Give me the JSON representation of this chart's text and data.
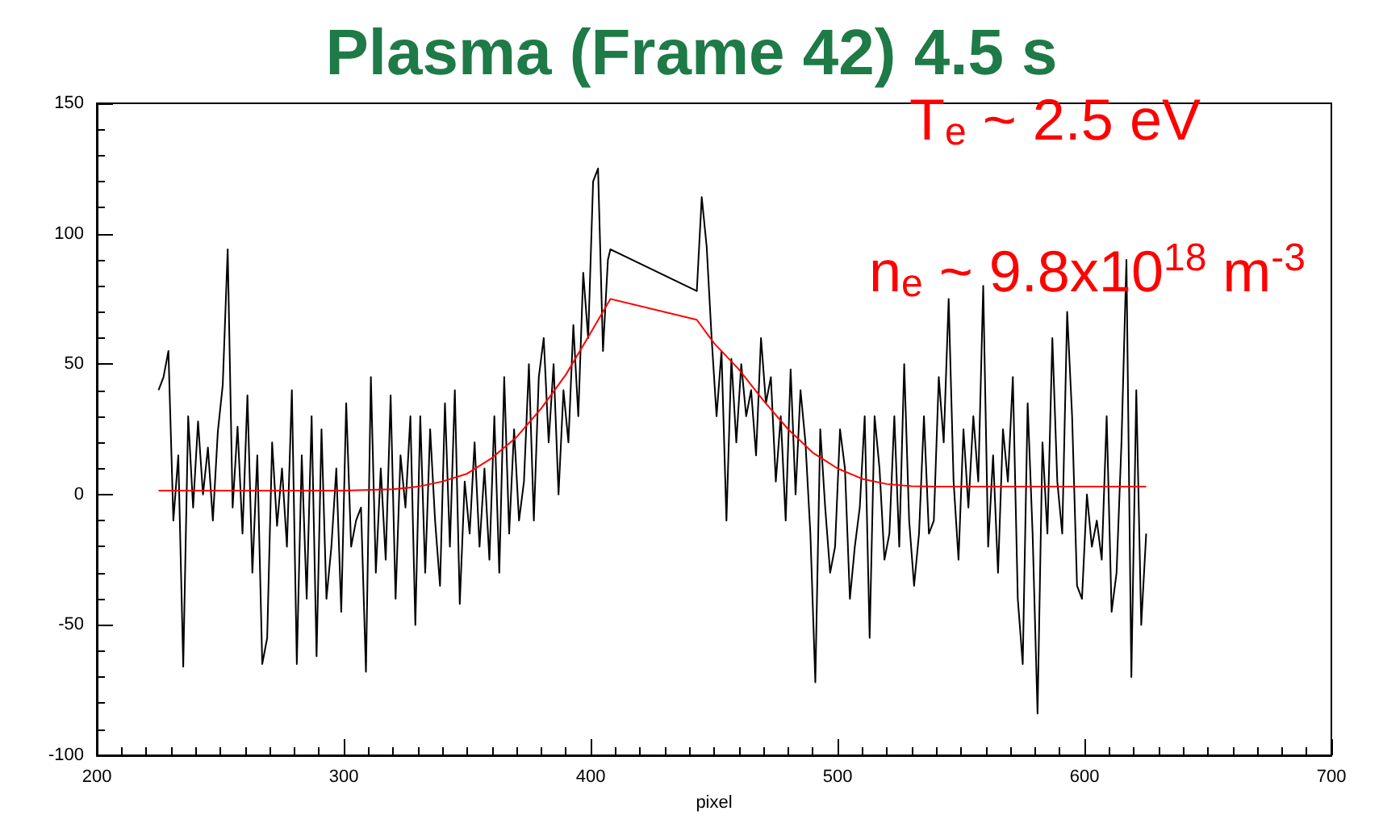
{
  "chart_data": {
    "type": "line",
    "title": "Plasma (Frame 42) 4.5 s",
    "xlabel": "pixel",
    "annotations": [
      "T$_{e}$ ~ 2.5 eV",
      "n$_{e}$ ~ 9.8x10$^{18}$ m$^{-3}$"
    ],
    "xlim": [
      200,
      700
    ],
    "xticks": [
      200,
      300,
      400,
      500,
      600,
      700
    ],
    "ylim": [
      -100,
      150
    ],
    "yticks": [
      -100,
      -50,
      0,
      50,
      100,
      150
    ],
    "grid": false,
    "marker": "none",
    "line_style": "solid",
    "series": [
      {
        "color": "#000000",
        "x": [
          225,
          227,
          229,
          231,
          233,
          235,
          237,
          239,
          241,
          243,
          245,
          247,
          249,
          251,
          253,
          255,
          257,
          259,
          261,
          263,
          265,
          267,
          269,
          271,
          273,
          275,
          277,
          279,
          281,
          283,
          285,
          287,
          289,
          291,
          293,
          295,
          297,
          299,
          301,
          303,
          305,
          307,
          309,
          311,
          313,
          315,
          317,
          319,
          321,
          323,
          325,
          327,
          329,
          331,
          333,
          335,
          337,
          339,
          341,
          343,
          345,
          347,
          349,
          351,
          353,
          355,
          357,
          359,
          361,
          363,
          365,
          367,
          369,
          371,
          373,
          375,
          377,
          379,
          381,
          383,
          385,
          387,
          389,
          391,
          393,
          395,
          397,
          399,
          401,
          403,
          405,
          407,
          408,
          443,
          445,
          447,
          449,
          451,
          453,
          455,
          457,
          459,
          461,
          463,
          465,
          467,
          469,
          471,
          473,
          475,
          477,
          479,
          481,
          483,
          485,
          487,
          489,
          491,
          493,
          495,
          497,
          499,
          501,
          503,
          505,
          507,
          509,
          511,
          513,
          515,
          517,
          519,
          521,
          523,
          525,
          527,
          529,
          531,
          533,
          535,
          537,
          539,
          541,
          543,
          545,
          547,
          549,
          551,
          553,
          555,
          557,
          559,
          561,
          563,
          565,
          567,
          569,
          571,
          573,
          575,
          577,
          579,
          581,
          583,
          585,
          587,
          589,
          591,
          593,
          595,
          597,
          599,
          601,
          603,
          605,
          607,
          609,
          611,
          613,
          615,
          617,
          619,
          621,
          623,
          625
        ],
        "values": [
          40,
          45,
          55,
          -10,
          15,
          -66,
          30,
          -5,
          28,
          0,
          18,
          -10,
          24,
          42,
          94,
          -5,
          26,
          -15,
          38,
          -30,
          15,
          -65,
          -55,
          20,
          -12,
          10,
          -20,
          40,
          -65,
          15,
          -40,
          30,
          -62,
          25,
          -40,
          -20,
          10,
          -45,
          35,
          -20,
          -10,
          -5,
          -68,
          45,
          -30,
          10,
          -25,
          38,
          -40,
          15,
          -5,
          30,
          -50,
          30,
          -30,
          25,
          -10,
          -35,
          35,
          -20,
          40,
          -42,
          5,
          -15,
          20,
          -20,
          10,
          -25,
          30,
          -30,
          45,
          -15,
          25,
          -10,
          5,
          50,
          -10,
          45,
          60,
          20,
          50,
          0,
          40,
          20,
          65,
          30,
          85,
          60,
          120,
          125,
          55,
          90,
          94,
          78,
          114,
          95,
          60,
          30,
          55,
          -10,
          52,
          20,
          50,
          30,
          40,
          15,
          60,
          35,
          45,
          5,
          30,
          -10,
          48,
          0,
          40,
          20,
          -15,
          -72,
          25,
          -5,
          -30,
          -20,
          25,
          10,
          -40,
          -20,
          -5,
          30,
          -55,
          30,
          10,
          -25,
          -15,
          30,
          -20,
          50,
          -10,
          -35,
          -15,
          30,
          -15,
          -10,
          45,
          20,
          75,
          5,
          -25,
          25,
          -5,
          30,
          5,
          80,
          -20,
          15,
          -30,
          25,
          5,
          45,
          -40,
          -65,
          35,
          -15,
          -84,
          20,
          -15,
          60,
          5,
          -15,
          70,
          30,
          -35,
          -40,
          0,
          -20,
          -10,
          -25,
          30,
          -45,
          -30,
          20,
          90,
          -70,
          40,
          -50,
          -15
        ]
      },
      {
        "color": "#ff0000",
        "x": [
          225,
          260,
          300,
          320,
          330,
          340,
          350,
          360,
          370,
          380,
          390,
          400,
          408,
          443,
          450,
          460,
          470,
          480,
          490,
          500,
          510,
          520,
          530,
          540,
          580,
          625
        ],
        "values": [
          1.5,
          1.5,
          1.5,
          2,
          3,
          5,
          8,
          14,
          22,
          33,
          46,
          62,
          75,
          67,
          58,
          48,
          36,
          25,
          16,
          10,
          6,
          4,
          3.2,
          3,
          3,
          3
        ]
      }
    ]
  }
}
